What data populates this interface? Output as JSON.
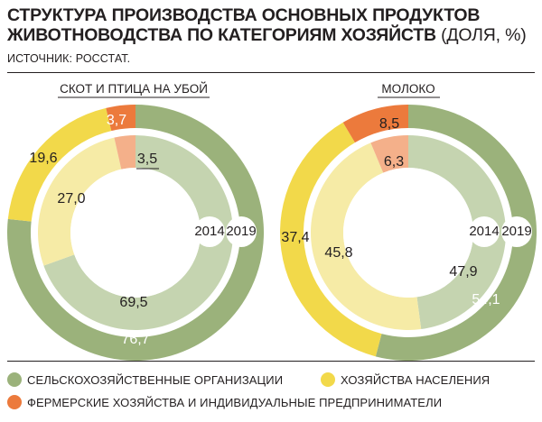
{
  "header": {
    "title_line1": "СТРУКТУРА ПРОИЗВОДСТВА ОСНОВНЫХ ПРОДУКТОВ",
    "title_line2": "ЖИВОТНОВОДСТВА ПО КАТЕГОРИЯМ ХОЗЯЙСТВ",
    "title_unit": "(ДОЛЯ, %)",
    "source": "ИСТОЧНИК: РОССТАТ."
  },
  "colors": {
    "agri_outer": "#9bb27b",
    "agri_inner": "#c5d4b0",
    "house_outer": "#f2d94a",
    "house_inner": "#f6eba6",
    "farm_outer": "#ec7a3c",
    "farm_inner": "#f4b08a"
  },
  "icons": [
    "cow-icon",
    "milk-bottles-icon"
  ],
  "chart_data": [
    {
      "type": "pie",
      "variant": "nested-donut",
      "title": "СКОТ И ПТИЦА НА УБОЙ",
      "categories": [
        "СЕЛЬСКОХОЗЯЙСТВЕННЫЕ ОРГАНИЗАЦИИ",
        "ХОЗЯЙСТВА НАСЕЛЕНИЯ",
        "ФЕРМЕРСКИЕ ХОЗЯЙСТВА И ИНДИВИДУАЛЬНЫЕ ПРЕДПРИНИМАТЕЛИ"
      ],
      "series": [
        {
          "name": "2019",
          "ring": "outer",
          "values": [
            76.7,
            19.6,
            3.7
          ],
          "labels": [
            "76,7",
            "19,6",
            "3,7"
          ]
        },
        {
          "name": "2014",
          "ring": "inner",
          "values": [
            69.5,
            27.0,
            3.5
          ],
          "labels": [
            "69,5",
            "27,0",
            "3,5"
          ]
        }
      ]
    },
    {
      "type": "pie",
      "variant": "nested-donut",
      "title": "МОЛОКО",
      "categories": [
        "СЕЛЬСКОХОЗЯЙСТВЕННЫЕ ОРГАНИЗАЦИИ",
        "ХОЗЯЙСТВА НАСЕЛЕНИЯ",
        "ФЕРМЕРСКИЕ ХОЗЯЙСТВА И ИНДИВИДУАЛЬНЫЕ ПРЕДПРИНИМАТЕЛИ"
      ],
      "series": [
        {
          "name": "2019",
          "ring": "outer",
          "values": [
            54.1,
            37.4,
            8.5
          ],
          "labels": [
            "54,1",
            "37,4",
            "8,5"
          ]
        },
        {
          "name": "2014",
          "ring": "inner",
          "values": [
            47.9,
            45.8,
            6.3
          ],
          "labels": [
            "47,9",
            "45,8",
            "6,3"
          ]
        }
      ]
    }
  ],
  "legend": {
    "agri": "СЕЛЬСКОХОЗЯЙСТВЕННЫЕ ОРГАНИЗАЦИИ",
    "house": "ХОЗЯЙСТВА НАСЕЛЕНИЯ",
    "farm": "ФЕРМЕРСКИЕ ХОЗЯЙСТВА И ИНДИВИДУАЛЬНЫЕ ПРЕДПРИНИМАТЕЛИ"
  }
}
